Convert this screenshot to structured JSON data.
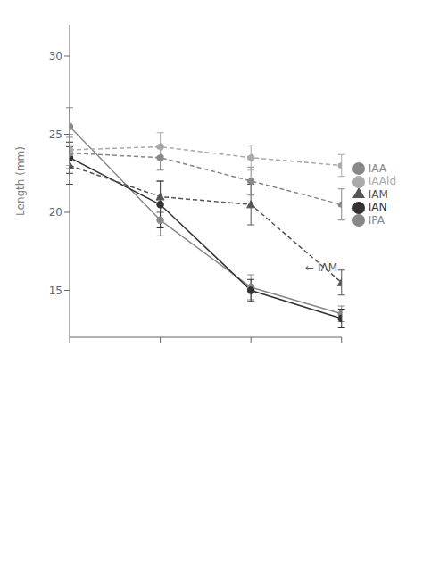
{
  "chart_data": {
    "type": "line",
    "y_label": "Length (mm)",
    "x": [
      0,
      1,
      2,
      3
    ],
    "xlim": [
      0,
      3
    ],
    "xticks": [
      0,
      1,
      2,
      3
    ],
    "ylim": [
      12,
      32
    ],
    "yticks": [
      15,
      20,
      25,
      30
    ],
    "tick_labels": "y",
    "grid": false,
    "legend": "right",
    "series": [
      {
        "name": "IAA",
        "color": "#888888",
        "marker": "circle",
        "line_style": "solid",
        "values": [
          25.5,
          19.5,
          15.2,
          13.5
        ],
        "errors": [
          1.2,
          1.0,
          0.8,
          0.5
        ]
      },
      {
        "name": "IAN",
        "color": "#333333",
        "marker": "circle",
        "line_style": "solid",
        "values": [
          23.5,
          20.5,
          15.0,
          13.2
        ],
        "errors": [
          1.0,
          1.5,
          0.7,
          0.6
        ]
      },
      {
        "name": "IAM",
        "color": "#555555",
        "marker": "triangle",
        "line_style": "dashed",
        "values": [
          23.0,
          21.0,
          20.5,
          15.5
        ],
        "errors": [
          1.2,
          1.0,
          1.3,
          0.8
        ]
      },
      {
        "name": "IPA",
        "color": "#888888",
        "marker": "circle",
        "line_style": "dashed",
        "values": [
          23.8,
          23.5,
          22.0,
          20.5
        ],
        "errors": [
          1.0,
          0.8,
          0.9,
          1.0
        ]
      },
      {
        "name": "IAAld",
        "color": "#aaaaaa",
        "marker": "circle",
        "line_style": "dashed",
        "values": [
          24.0,
          24.2,
          23.5,
          23.0
        ],
        "errors": [
          1.0,
          0.9,
          0.8,
          0.7
        ]
      }
    ],
    "annotations": [
      {
        "text": "← IAM",
        "x": 2.55,
        "y": 16.5
      }
    ]
  }
}
